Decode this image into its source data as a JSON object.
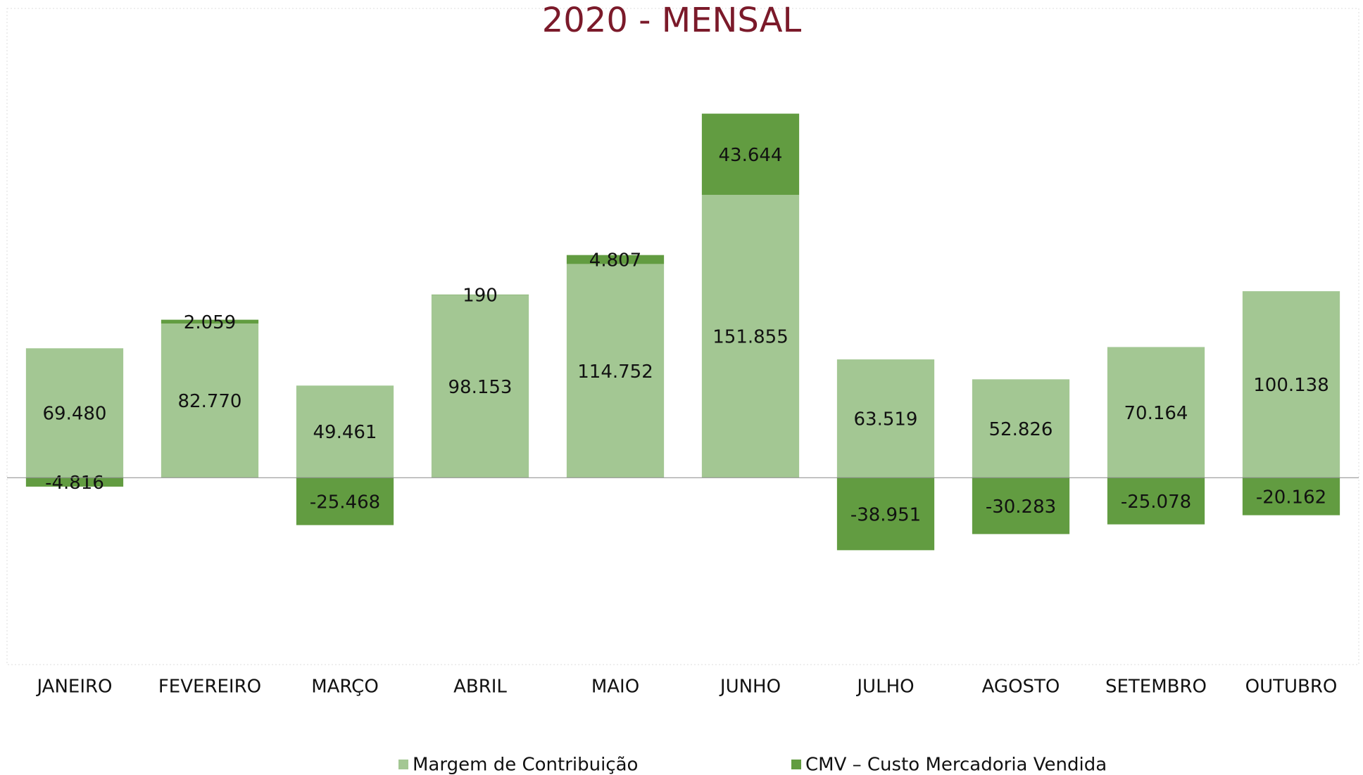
{
  "chart_data": {
    "type": "bar",
    "stacked": true,
    "title": "2020 - MENSAL",
    "categories": [
      "JANEIRO",
      "FEVEREIRO",
      "MARÇO",
      "ABRIL",
      "MAIO",
      "JUNHO",
      "JULHO",
      "AGOSTO",
      "SETEMBRO",
      "OUTUBRO"
    ],
    "series": [
      {
        "name": "Margem de Contribuição",
        "color": "#a3c793",
        "values": [
          69480,
          82770,
          49461,
          98153,
          114752,
          151855,
          63519,
          52826,
          70164,
          100138
        ],
        "value_labels": [
          "69.480",
          "82.770",
          "49.461",
          "98.153",
          "114.752",
          "151.855",
          "63.519",
          "52.826",
          "70.164",
          "100.138"
        ]
      },
      {
        "name": "CMV – Custo Mercadoria Vendida",
        "color": "#629c41",
        "values": [
          -4816,
          2059,
          -25468,
          190,
          4807,
          43644,
          -38951,
          -30283,
          -25078,
          -20162
        ],
        "value_labels": [
          "-4.816",
          "2.059",
          "-25.468",
          "190",
          "4.807",
          "43.644",
          "-38.951",
          "-30.283",
          "-25.078",
          "-20.162"
        ]
      }
    ],
    "ylim": [
      -100000,
      235000
    ],
    "legend": "bottom"
  }
}
